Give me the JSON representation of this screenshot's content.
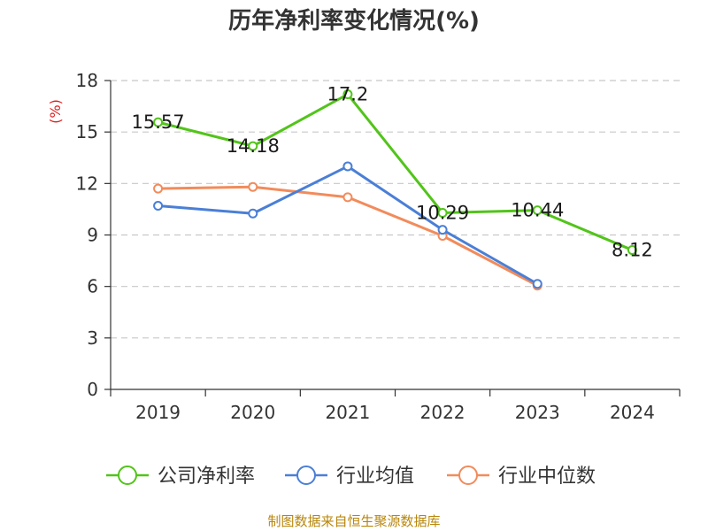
{
  "chart_data": {
    "type": "line",
    "title": "历年净利率变化情况(%)",
    "ylabel": "(%)",
    "xlabel": "",
    "categories": [
      "2019",
      "2020",
      "2021",
      "2022",
      "2023",
      "2024"
    ],
    "ylim": [
      0,
      18
    ],
    "yticks": [
      0,
      3,
      6,
      9,
      12,
      15,
      18
    ],
    "grid": true,
    "legend_position": "bottom",
    "series": [
      {
        "name": "公司净利率",
        "color": "#52c41a",
        "values": [
          15.57,
          14.18,
          17.2,
          10.29,
          10.44,
          8.12
        ],
        "labels": [
          "15.57",
          "14.18",
          "17.2",
          "10.29",
          "10.44",
          "8.12"
        ]
      },
      {
        "name": "行业均值",
        "color": "#4a7fd6",
        "values": [
          10.7,
          10.25,
          13.0,
          9.3,
          6.15,
          null
        ]
      },
      {
        "name": "行业中位数",
        "color": "#f28b5b",
        "values": [
          11.7,
          11.8,
          11.2,
          8.95,
          6.05,
          null
        ]
      }
    ]
  },
  "footer": "制图数据来自恒生聚源数据库"
}
